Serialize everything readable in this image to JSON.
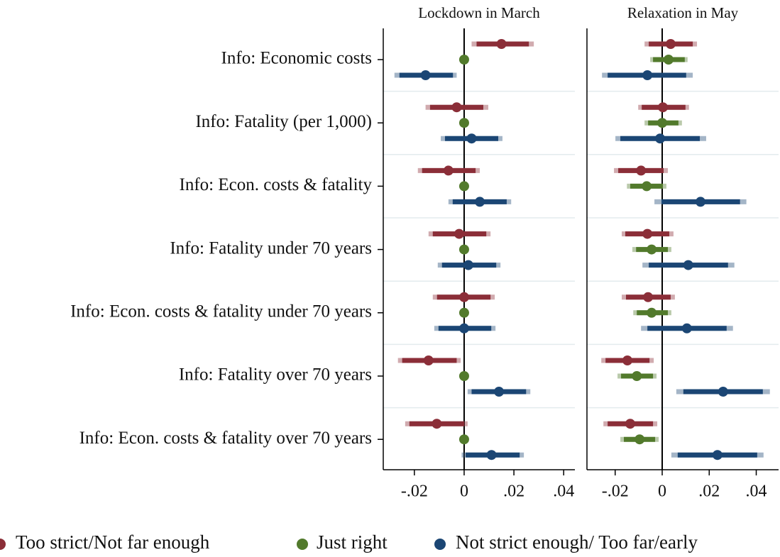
{
  "chart_data": [
    {
      "type": "coefplot",
      "title": "Lockdown in March",
      "categories": [
        "Info: Economic costs",
        "Info: Fatality (per 1,000)",
        "Info: Econ. costs & fatality",
        "Info: Fatality under 70 years",
        "Info: Econ. costs & fatality under 70 years",
        "Info: Fatality over 70 years",
        "Info: Econ. costs & fatality over 70 years"
      ],
      "xlim": [
        -0.0325,
        0.0445
      ],
      "xticks": [
        {
          "value": -0.02,
          "label": "-.02"
        },
        0,
        {
          "value": 0.02,
          "label": ".02"
        },
        {
          "value": 0.04,
          "label": ".04"
        }
      ],
      "grid": true,
      "series": [
        {
          "name": "Too strict/Not far enough",
          "color": "#8b2e38",
          "values": [
            0.015,
            -0.003,
            -0.0063,
            -0.002,
            0,
            -0.0143,
            -0.011
          ],
          "ci_outer": [
            [
              0.003,
              0.028
            ],
            [
              -0.0155,
              0.0097
            ],
            [
              -0.0186,
              0.0063
            ],
            [
              -0.0143,
              0.0106
            ],
            [
              -0.0126,
              0.0123
            ],
            [
              -0.0266,
              -0.0014
            ],
            [
              -0.0237,
              0.0014
            ]
          ],
          "ci_inner": [
            [
              0.005,
              0.026
            ],
            [
              -0.0137,
              0.0077
            ],
            [
              -0.0169,
              0.0046
            ],
            [
              -0.0126,
              0.0089
            ],
            [
              -0.0109,
              0.0106
            ],
            [
              -0.0249,
              -0.003
            ],
            [
              -0.022,
              0
            ]
          ]
        },
        {
          "name": "Just right",
          "color": "#527a2c",
          "values": [
            0,
            0,
            0,
            0,
            0,
            0,
            0
          ],
          "ci_outer": [
            null,
            null,
            null,
            null,
            null,
            null,
            null
          ],
          "ci_inner": [
            null,
            null,
            null,
            null,
            null,
            null,
            null
          ]
        },
        {
          "name": "Not strict enough/ Too far/early",
          "color": "#1b4674",
          "values": [
            -0.0155,
            0.003,
            0.0063,
            0.0017,
            0,
            0.014,
            0.011
          ],
          "ci_outer": [
            [
              -0.028,
              -0.003
            ],
            [
              -0.0094,
              0.0154
            ],
            [
              -0.0063,
              0.0189
            ],
            [
              -0.0106,
              0.0146
            ],
            [
              -0.012,
              0.0126
            ],
            [
              0.0014,
              0.0266
            ],
            [
              -0.001,
              0.024
            ]
          ],
          "ci_inner": [
            [
              -0.026,
              -0.0045
            ],
            [
              -0.0077,
              0.0137
            ],
            [
              -0.0046,
              0.0171
            ],
            [
              -0.0089,
              0.0129
            ],
            [
              -0.0103,
              0.0109
            ],
            [
              0.003,
              0.0249
            ],
            [
              0.0006,
              0.0223
            ]
          ]
        }
      ]
    },
    {
      "type": "coefplot",
      "title": "Relaxation in May",
      "xlim": [
        -0.032,
        0.0495
      ],
      "xticks": [
        {
          "value": -0.02,
          "label": "-.02"
        },
        0,
        {
          "value": 0.02,
          "label": ".02"
        },
        {
          "value": 0.04,
          "label": ".04"
        }
      ],
      "grid": true,
      "series": [
        {
          "color": "#8b2e38",
          "values": [
            0.0036,
            0.0003,
            -0.009,
            -0.0063,
            -0.006,
            -0.0148,
            -0.0136
          ],
          "ci_outer": [
            [
              -0.0075,
              0.0148
            ],
            [
              -0.0102,
              0.0114
            ],
            [
              -0.0205,
              0.0024
            ],
            [
              -0.0172,
              0.0048
            ],
            [
              -0.0172,
              0.0054
            ],
            [
              -0.0259,
              -0.0036
            ],
            [
              -0.025,
              -0.0021
            ]
          ],
          "ci_inner": [
            [
              -0.0057,
              0.013
            ],
            [
              -0.0087,
              0.0099
            ],
            [
              -0.0187,
              0.0006
            ],
            [
              -0.0157,
              0.003
            ],
            [
              -0.0154,
              0.0036
            ],
            [
              -0.0241,
              -0.0054
            ],
            [
              -0.0232,
              -0.0039
            ]
          ]
        },
        {
          "color": "#527a2c",
          "values": [
            0.0027,
            0,
            -0.0066,
            -0.0045,
            -0.0045,
            -0.0108,
            -0.0096
          ],
          "ci_outer": [
            [
              -0.0051,
              0.0108
            ],
            [
              -0.0075,
              0.0084
            ],
            [
              -0.015,
              0.0018
            ],
            [
              -0.0127,
              0.0039
            ],
            [
              -0.0123,
              0.0039
            ],
            [
              -0.019,
              -0.0024
            ],
            [
              -0.0178,
              -0.0015
            ]
          ],
          "ci_inner": [
            [
              -0.0039,
              0.0096
            ],
            [
              -0.006,
              0.0069
            ],
            [
              -0.0136,
              0.0003
            ],
            [
              -0.0111,
              0.0024
            ],
            [
              -0.0108,
              0.0024
            ],
            [
              -0.0175,
              -0.0039
            ],
            [
              -0.0163,
              -0.003
            ]
          ]
        },
        {
          "color": "#1b4674",
          "values": [
            -0.0063,
            -0.0009,
            0.0163,
            0.0111,
            0.0105,
            0.0259,
            0.0235
          ],
          "ci_outer": [
            [
              -0.0256,
              0.013
            ],
            [
              -0.0199,
              0.0187
            ],
            [
              -0.0033,
              0.0358
            ],
            [
              -0.0084,
              0.0307
            ],
            [
              -0.009,
              0.0301
            ],
            [
              0.006,
              0.0458
            ],
            [
              0.0039,
              0.0431
            ]
          ],
          "ci_inner": [
            [
              -0.0232,
              0.0102
            ],
            [
              -0.0178,
              0.016
            ],
            [
              -0.0003,
              0.0331
            ],
            [
              -0.0057,
              0.028
            ],
            [
              -0.0063,
              0.0274
            ],
            [
              0.009,
              0.0428
            ],
            [
              0.0066,
              0.0404
            ]
          ]
        }
      ]
    }
  ]
}
